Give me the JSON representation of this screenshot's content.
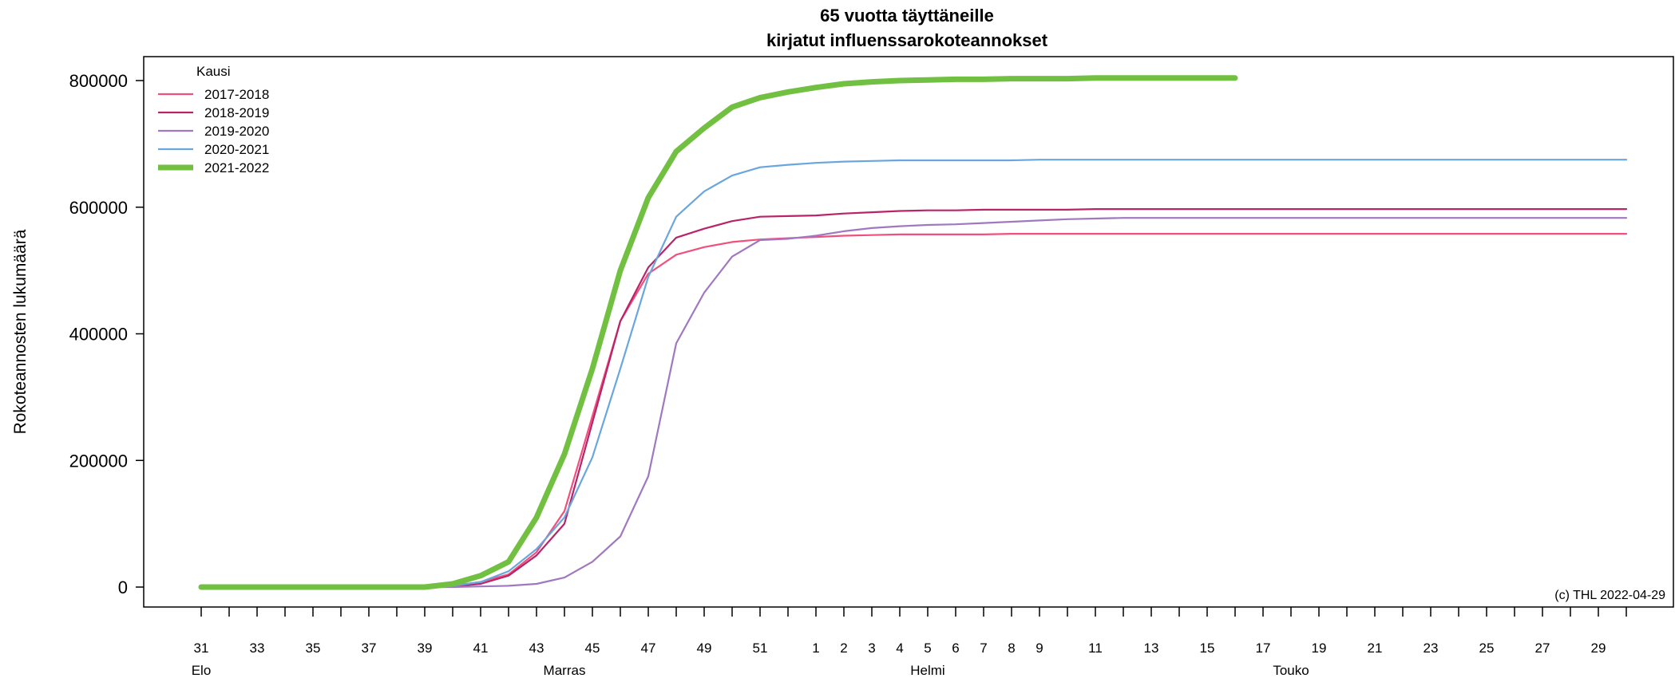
{
  "chart_data": {
    "type": "line",
    "title_line1": "65 vuotta täyttäneille",
    "title_line2": "kirjatut influenssarokoteannokset",
    "ylabel": "Rokoteannosten lukumäärä",
    "xlabel": "",
    "ylim": [
      0,
      800000
    ],
    "y_ticks": [
      0,
      200000,
      400000,
      600000,
      800000
    ],
    "y_tick_labels": [
      "0",
      "200000",
      "400000",
      "600000",
      "800000"
    ],
    "x_weeks": [
      31,
      32,
      33,
      34,
      35,
      36,
      37,
      38,
      39,
      40,
      41,
      42,
      43,
      44,
      45,
      46,
      47,
      48,
      49,
      50,
      51,
      52,
      1,
      2,
      3,
      4,
      5,
      6,
      7,
      8,
      9,
      10,
      11,
      12,
      13,
      14,
      15,
      16,
      17,
      18,
      19,
      20,
      21,
      22,
      23,
      24,
      25,
      26,
      27,
      28,
      29,
      30
    ],
    "x_tick_labels": [
      "31",
      "33",
      "35",
      "37",
      "39",
      "41",
      "43",
      "45",
      "47",
      "49",
      "51",
      "1",
      "2",
      "3",
      "4",
      "5",
      "6",
      "7",
      "8",
      "9",
      "11",
      "13",
      "15",
      "17",
      "19",
      "21",
      "23",
      "25",
      "27",
      "29"
    ],
    "x_tick_label_indices": [
      0,
      2,
      4,
      6,
      8,
      10,
      12,
      14,
      16,
      18,
      20,
      22,
      23,
      24,
      25,
      26,
      27,
      28,
      29,
      30,
      32,
      34,
      36,
      38,
      40,
      42,
      44,
      46,
      48,
      50
    ],
    "month_labels": [
      {
        "label": "Elo",
        "index": 0
      },
      {
        "label": "Marras",
        "index": 13
      },
      {
        "label": "Helmi",
        "index": 26
      },
      {
        "label": "Touko",
        "index": 39
      }
    ],
    "legend_title": "Kausi",
    "legend_position": "top-left",
    "grid": false,
    "credit": "(c) THL 2022-04-29",
    "series": [
      {
        "name": "2017-2018",
        "color": "#f0507d",
        "width": "thin",
        "values": [
          0,
          0,
          0,
          0,
          0,
          0,
          0,
          0,
          0,
          2000,
          8000,
          20000,
          55000,
          120000,
          270000,
          420000,
          495000,
          525000,
          537000,
          545000,
          549000,
          551000,
          553000,
          555000,
          556000,
          557000,
          557000,
          557000,
          557000,
          558000,
          558000,
          558000,
          558000,
          558000,
          558000,
          558000,
          558000,
          558000,
          558000,
          558000,
          558000,
          558000,
          558000,
          558000,
          558000,
          558000,
          558000,
          558000,
          558000,
          558000,
          558000,
          558000
        ]
      },
      {
        "name": "2018-2019",
        "color": "#b8246a",
        "width": "thin",
        "values": [
          0,
          0,
          0,
          0,
          0,
          0,
          0,
          0,
          0,
          1000,
          5000,
          18000,
          50000,
          100000,
          260000,
          420000,
          505000,
          552000,
          566000,
          578000,
          585000,
          586000,
          587000,
          590000,
          592000,
          594000,
          595000,
          595000,
          596000,
          596000,
          596000,
          596000,
          597000,
          597000,
          597000,
          597000,
          597000,
          597000,
          597000,
          597000,
          597000,
          597000,
          597000,
          597000,
          597000,
          597000,
          597000,
          597000,
          597000,
          597000,
          597000,
          597000
        ]
      },
      {
        "name": "2019-2020",
        "color": "#a078c0",
        "width": "thin",
        "values": [
          0,
          0,
          0,
          0,
          0,
          0,
          0,
          0,
          0,
          0,
          1000,
          2000,
          5000,
          15000,
          40000,
          80000,
          175000,
          385000,
          465000,
          522000,
          548000,
          550000,
          555000,
          562000,
          567000,
          570000,
          572000,
          573000,
          575000,
          577000,
          579000,
          581000,
          582000,
          583000,
          583000,
          583000,
          583000,
          583000,
          583000,
          583000,
          583000,
          583000,
          583000,
          583000,
          583000,
          583000,
          583000,
          583000,
          583000,
          583000,
          583000,
          583000
        ]
      },
      {
        "name": "2020-2021",
        "color": "#6aa6de",
        "width": "thin",
        "values": [
          0,
          0,
          0,
          0,
          0,
          0,
          0,
          0,
          0,
          2000,
          8000,
          25000,
          60000,
          110000,
          205000,
          345000,
          490000,
          585000,
          625000,
          650000,
          663000,
          667000,
          670000,
          672000,
          673000,
          674000,
          674000,
          674000,
          674000,
          674000,
          675000,
          675000,
          675000,
          675000,
          675000,
          675000,
          675000,
          675000,
          675000,
          675000,
          675000,
          675000,
          675000,
          675000,
          675000,
          675000,
          675000,
          675000,
          675000,
          675000,
          675000,
          675000
        ]
      },
      {
        "name": "2021-2022",
        "color": "#72c042",
        "width": "thick",
        "values": [
          0,
          0,
          0,
          0,
          0,
          0,
          0,
          0,
          0,
          5000,
          18000,
          40000,
          110000,
          210000,
          345000,
          500000,
          615000,
          688000,
          725000,
          758000,
          773000,
          782000,
          789000,
          795000,
          798000,
          800000,
          801000,
          802000,
          802000,
          803000,
          803000,
          803000,
          804000,
          804000,
          804000,
          804000,
          804000,
          804000
        ]
      }
    ]
  }
}
